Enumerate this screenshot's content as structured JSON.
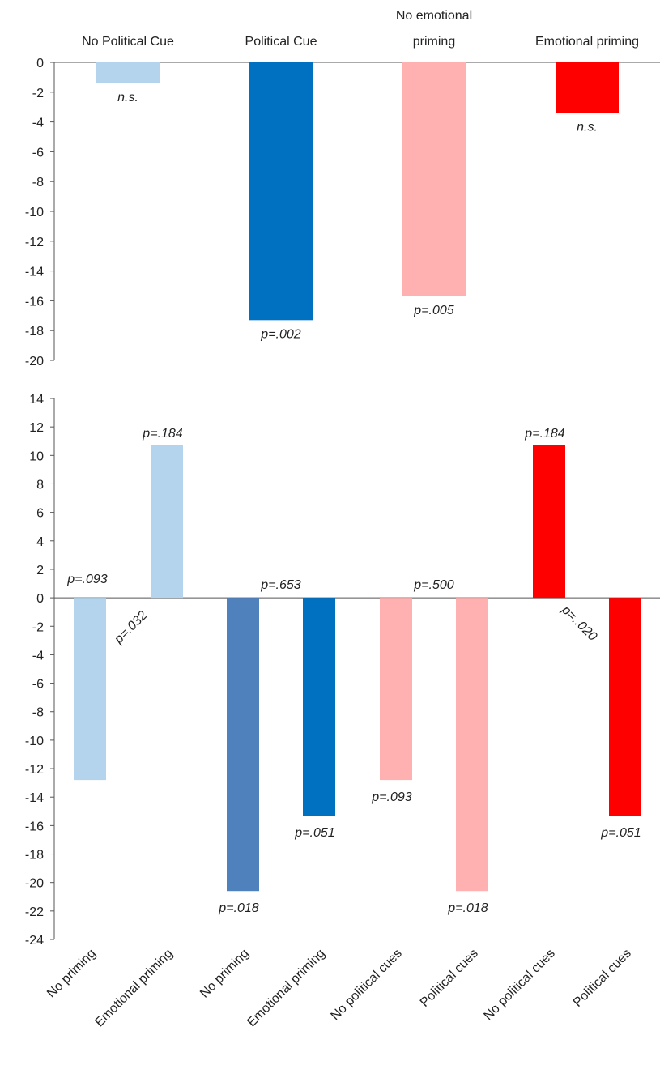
{
  "colors": {
    "light_blue": "#b3d4ec",
    "mid_blue": "#4f81bd",
    "blue": "#0070c0",
    "pink": "#ffb0b0",
    "red": "#ff0000",
    "axis": "#555555",
    "text": "#222222"
  },
  "chart_data": [
    {
      "type": "bar",
      "title": "",
      "xlabel": "",
      "ylabel": "",
      "ylim": [
        -20,
        0
      ],
      "yticks": [
        0,
        -2,
        -4,
        -6,
        -8,
        -10,
        -12,
        -14,
        -16,
        -18,
        -20
      ],
      "grid": false,
      "categories": [
        "No Political Cue",
        "Political Cue",
        "No emotional priming",
        "Emotional priming"
      ],
      "values": [
        -1.4,
        -17.3,
        -15.7,
        -3.4
      ],
      "bar_colors": [
        "light_blue",
        "blue",
        "pink",
        "red"
      ],
      "labels": [
        "n.s.",
        "p=.002",
        "p=.005",
        "n.s."
      ]
    },
    {
      "type": "bar",
      "title": "",
      "xlabel": "",
      "ylabel": "",
      "ylim": [
        -24,
        14
      ],
      "yticks": [
        14,
        12,
        10,
        8,
        6,
        4,
        2,
        0,
        -2,
        -4,
        -6,
        -8,
        -10,
        -12,
        -14,
        -16,
        -18,
        -20,
        -22,
        -24
      ],
      "grid": false,
      "categories": [
        "No priming",
        "Emotional priming",
        "No priming",
        "Emotional priming",
        "No political cues",
        "Political cues",
        "No political cues",
        "Political cues"
      ],
      "values": [
        -12.8,
        10.7,
        -20.6,
        -15.3,
        -12.8,
        -20.6,
        10.7,
        -15.3
      ],
      "bar_colors": [
        "light_blue",
        "light_blue",
        "mid_blue",
        "blue",
        "pink",
        "pink",
        "red",
        "red"
      ],
      "labels": [
        "p=.093",
        "p=.184",
        "p=.018",
        "p=.051",
        "p=.093",
        "p=.018",
        "p=.184",
        "p=.051"
      ],
      "annotations": [
        "p=.032",
        "p=.653",
        "p=.500",
        "p=..020"
      ]
    }
  ]
}
